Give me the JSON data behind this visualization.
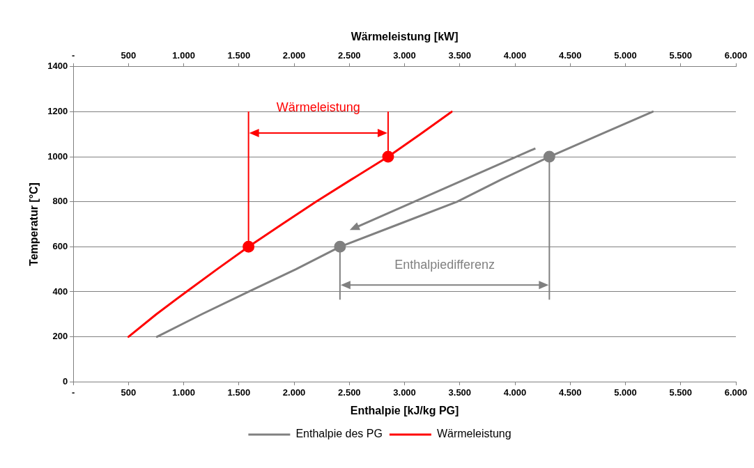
{
  "chart_data": {
    "type": "line",
    "xlabel": "Enthalpie [kJ/kg PG]",
    "x2label": "Wärmeleistung [kW]",
    "ylabel": "Temperatur [°C]",
    "xlim": [
      0,
      6000
    ],
    "xticks": [
      {
        "value": 0,
        "label": "-"
      },
      500,
      {
        "value": 1000,
        "label": "1.000"
      },
      {
        "value": 1500,
        "label": "1.500"
      },
      {
        "value": 2000,
        "label": "2.000"
      },
      {
        "value": 2500,
        "label": "2.500"
      },
      {
        "value": 3000,
        "label": "3.000"
      },
      {
        "value": 3500,
        "label": "3.500"
      },
      {
        "value": 4000,
        "label": "4.000"
      },
      {
        "value": 4500,
        "label": "4.500"
      },
      {
        "value": 5000,
        "label": "5.000"
      },
      {
        "value": 5500,
        "label": "5.500"
      },
      {
        "value": 6000,
        "label": "6.000"
      }
    ],
    "x2lim": [
      0,
      6000
    ],
    "x2ticks": [
      {
        "value": 0,
        "label": "-"
      },
      500,
      {
        "value": 1000,
        "label": "1.000"
      },
      {
        "value": 1500,
        "label": "1.500"
      },
      {
        "value": 2000,
        "label": "2.000"
      },
      {
        "value": 2500,
        "label": "2.500"
      },
      {
        "value": 3000,
        "label": "3.000"
      },
      {
        "value": 3500,
        "label": "3.500"
      },
      {
        "value": 4000,
        "label": "4.000"
      },
      {
        "value": 4500,
        "label": "4.500"
      },
      {
        "value": 5000,
        "label": "5.000"
      },
      {
        "value": 5500,
        "label": "5.500"
      },
      {
        "value": 6000,
        "label": "6.000"
      }
    ],
    "ylim": [
      0,
      1400
    ],
    "yticks": [
      0,
      200,
      400,
      600,
      800,
      1000,
      1200,
      1400
    ],
    "grid": "y",
    "legend": "bottom",
    "marker": "none",
    "series": [
      {
        "name": "Enthalpie des PG",
        "color": "#808080",
        "x": [
          758,
          1163,
          1587,
          2016,
          2415,
          2946,
          3476,
          3881,
          4311,
          4779,
          5247
        ],
        "values": [
          200,
          300,
          400,
          500,
          600,
          700,
          800,
          900,
          1000,
          1100,
          1200
        ]
      },
      {
        "name": "Wärmeleistung",
        "color": "#ff0000",
        "axis": "x2",
        "x": [
          500,
          752,
          1024,
          1302,
          1587,
          1890,
          2197,
          2522,
          2851,
          3142,
          3426
        ],
        "values": [
          200,
          300,
          400,
          500,
          600,
          700,
          800,
          900,
          1000,
          1100,
          1200
        ]
      },
      {
        "type": "scatter",
        "color": "#ff0000",
        "axis": "x2",
        "marker": "circle",
        "x": [
          1587,
          2851
        ],
        "values": [
          600,
          1000
        ]
      },
      {
        "type": "scatter",
        "color": "#808080",
        "marker": "circle",
        "x": [
          2415,
          4311
        ],
        "values": [
          600,
          1000
        ]
      }
    ],
    "annotations": [
      "Wärmeleistung",
      "Enthalpiedifferenz"
    ]
  }
}
